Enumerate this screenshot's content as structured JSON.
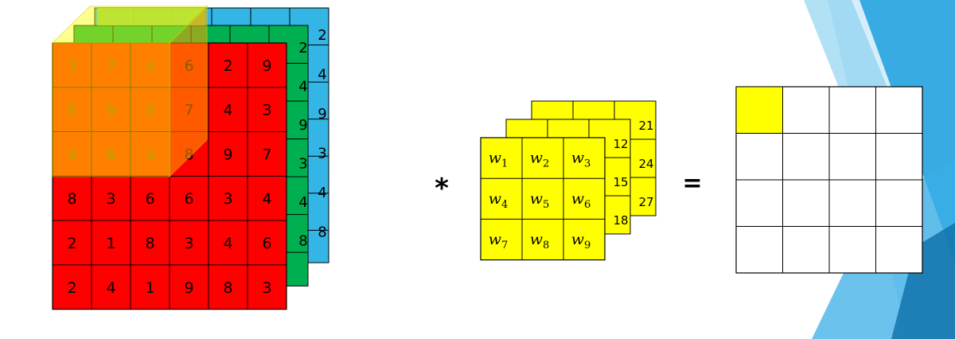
{
  "colors": {
    "red": "#ff0000",
    "green": "#00b050",
    "blue": "#33b5e5",
    "lightgreen": "#92d050",
    "yellow": "#ffff00",
    "orange": "#ffa500",
    "output_bg": "#ffffff",
    "grid_line": "#000000",
    "deco_blue": "#1c9fde"
  },
  "input_volume": {
    "red_layer": [
      [
        "3",
        "7",
        "4",
        "6",
        "2",
        "9"
      ],
      [
        "6",
        "9",
        "8",
        "7",
        "4",
        "3"
      ],
      [
        "4",
        "8",
        "3",
        "8",
        "9",
        "7"
      ],
      [
        "8",
        "3",
        "6",
        "6",
        "3",
        "4"
      ],
      [
        "2",
        "1",
        "8",
        "3",
        "4",
        "6"
      ],
      [
        "2",
        "4",
        "1",
        "9",
        "8",
        "3"
      ]
    ],
    "green_edge_values": [
      "2",
      "4",
      "9",
      "3",
      "4",
      "8"
    ],
    "blue_edge_values": [
      "2",
      "4",
      "9",
      "3",
      "4",
      "8"
    ]
  },
  "operators": {
    "convolve": "*",
    "equals": "="
  },
  "filter": {
    "front": [
      [
        "w1",
        "w2",
        "w3"
      ],
      [
        "w4",
        "w5",
        "w6"
      ],
      [
        "w7",
        "w8",
        "w9"
      ]
    ],
    "front_subscripts": [
      [
        "1",
        "2",
        "3"
      ],
      [
        "4",
        "5",
        "6"
      ],
      [
        "7",
        "8",
        "9"
      ]
    ],
    "middle_edge_values": [
      "12",
      "15",
      "18"
    ],
    "back_edge_values": [
      "21",
      "24",
      "27"
    ]
  },
  "output": {
    "rows": 4,
    "cols": 4,
    "highlight_cell": [
      0,
      0
    ]
  }
}
